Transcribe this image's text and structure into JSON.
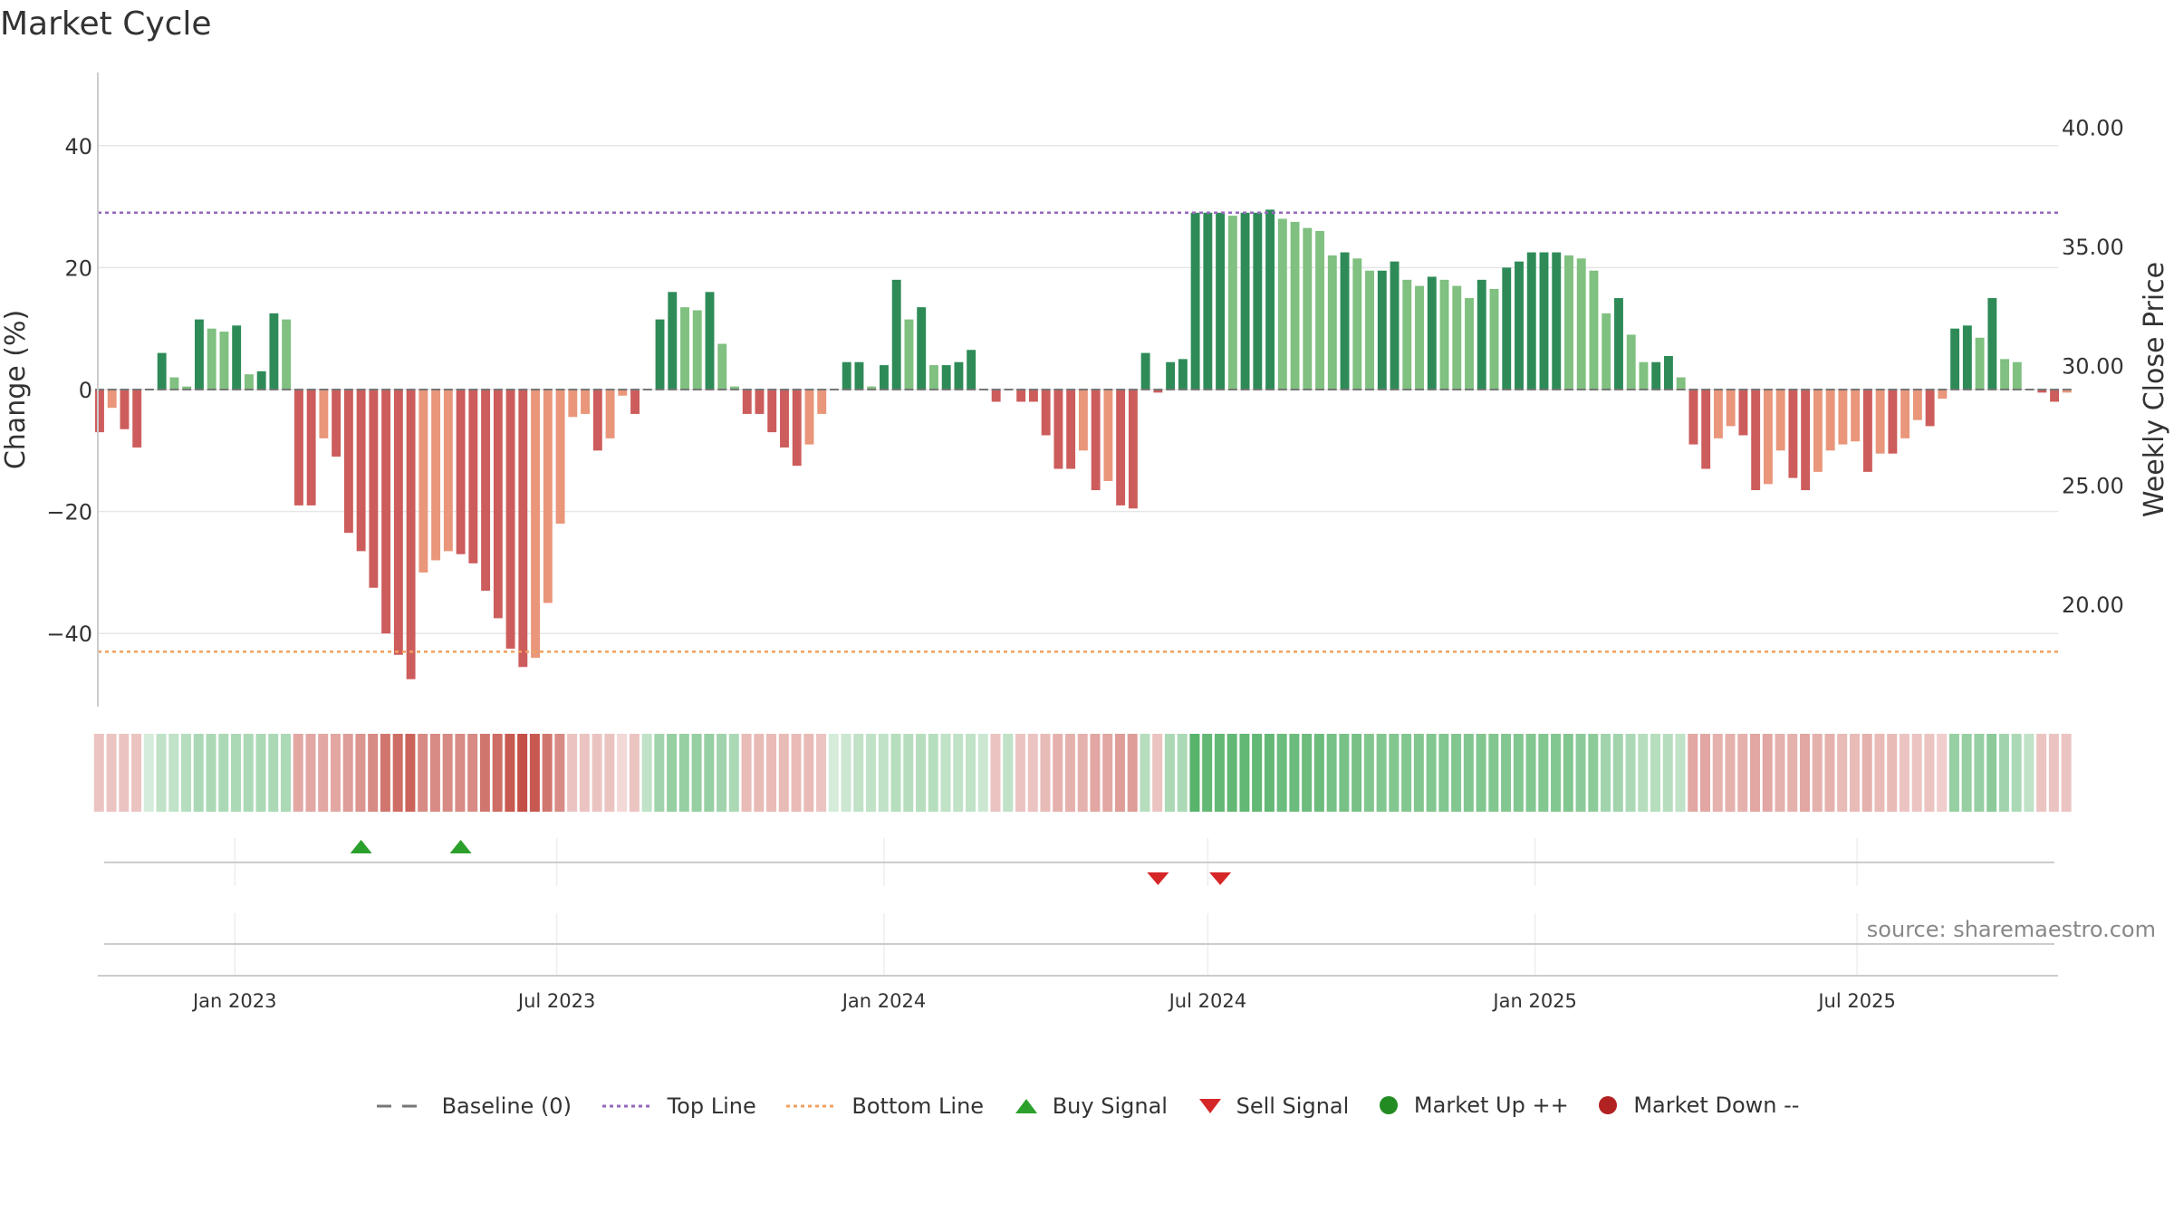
{
  "title": "Market Cycle",
  "source": "source: sharemaestro.com",
  "legend": [
    {
      "label": "Baseline (0)",
      "icon": "dash-line",
      "color": "#777777"
    },
    {
      "label": "Top Line",
      "icon": "dotted-line",
      "color": "#9467bd"
    },
    {
      "label": "Bottom Line",
      "icon": "dotted-line",
      "color": "#f0a060"
    },
    {
      "label": "Buy Signal",
      "icon": "triangle-up",
      "color": "#2ca02c"
    },
    {
      "label": "Sell Signal",
      "icon": "triangle-down",
      "color": "#d62728"
    },
    {
      "label": "Market Up ++",
      "icon": "circle",
      "color": "#228b22"
    },
    {
      "label": "Market Down --",
      "icon": "circle",
      "color": "#b22222"
    }
  ],
  "chart_data": {
    "type": "bar",
    "title": "Market Cycle",
    "ylabel": "Change (%)",
    "y2label": "Weekly Close Price",
    "ylim": [
      -52,
      52
    ],
    "yticks": [
      -40,
      -20,
      0,
      20,
      40
    ],
    "ytick_labels": [
      "−40",
      "−20",
      "0",
      "20",
      "40"
    ],
    "y2lim": [
      15.7,
      42.3
    ],
    "y2ticks": [
      20,
      25,
      30,
      35,
      40
    ],
    "y2tick_labels": [
      "20.00",
      "25.00",
      "30.00",
      "35.00",
      "40.00"
    ],
    "top_line": 29,
    "bottom_line": -43,
    "x_start": "2022-10-16",
    "x_end": "2025-10-22",
    "xtick_dates": [
      "2023-01-01",
      "2023-07-01",
      "2024-01-01",
      "2024-07-01",
      "2025-01-01",
      "2025-07-01"
    ],
    "xtick_labels": [
      "Jan 2023",
      "Jul 2023",
      "Jan 2024",
      "Jul 2024",
      "Jan 2025",
      "Jul 2025"
    ],
    "bars_start": "2022-10-17",
    "bars_interval_days": 7,
    "values": [
      -7,
      -3,
      -6.5,
      -9.5,
      0,
      6,
      2,
      0.5,
      11.5,
      10,
      9.5,
      10.5,
      2.5,
      3,
      12.5,
      11.5,
      -19,
      -19,
      -8,
      -11,
      -23.5,
      -26.5,
      -32.5,
      -40,
      -43.5,
      -47.5,
      -30,
      -28,
      -26.5,
      -27,
      -28.5,
      -33,
      -37.5,
      -42.5,
      -45.5,
      -44,
      -35,
      -22,
      -4.5,
      -4,
      -10,
      -8,
      -1,
      -4,
      0,
      11.5,
      16,
      13.5,
      13,
      16,
      7.5,
      0.5,
      -4,
      -4,
      -7,
      -9.5,
      -12.5,
      -9,
      -4,
      0,
      4.5,
      4.5,
      0.5,
      4,
      18,
      11.5,
      13.5,
      4,
      4,
      4.5,
      6.5,
      0,
      -2,
      0,
      -2,
      -2,
      -7.5,
      -13,
      -13,
      -10,
      -16.5,
      -15,
      -19,
      -19.5,
      6,
      -0.5,
      4.5,
      5,
      29,
      29,
      29,
      28.5,
      29,
      29,
      29.5,
      28,
      27.5,
      26.5,
      26,
      22,
      22.5,
      21.5,
      19.5,
      19.5,
      21,
      18,
      17,
      18.5,
      18,
      17,
      15,
      18,
      16.5,
      20,
      21,
      22.5,
      22.5,
      22.5,
      22,
      21.5,
      19.5,
      12.5,
      15,
      9,
      4.5,
      4.5,
      5.5,
      2,
      -9,
      -13,
      -8,
      -6,
      -7.5,
      -16.5,
      -15.5,
      -10,
      -14.5,
      -16.5,
      -13.5,
      -10,
      -9,
      -8.5,
      -13.5,
      -10.5,
      -10.5,
      -8,
      -5,
      -6,
      -1.5,
      10,
      10.5,
      8.5,
      15,
      5,
      4.5,
      0,
      -0.5,
      -2,
      -0.5
    ],
    "heat_strength": [
      0.3,
      0.3,
      0.3,
      0.3,
      0.2,
      0.3,
      0.3,
      0.35,
      0.4,
      0.4,
      0.4,
      0.4,
      0.4,
      0.4,
      0.4,
      0.4,
      0.45,
      0.45,
      0.45,
      0.45,
      0.5,
      0.55,
      0.6,
      0.7,
      0.75,
      0.8,
      0.6,
      0.6,
      0.6,
      0.6,
      0.6,
      0.7,
      0.75,
      0.85,
      0.9,
      0.85,
      0.7,
      0.6,
      0.3,
      0.3,
      0.3,
      0.3,
      0.2,
      0.3,
      0.3,
      0.45,
      0.5,
      0.5,
      0.5,
      0.5,
      0.45,
      0.4,
      0.35,
      0.35,
      0.35,
      0.35,
      0.35,
      0.35,
      0.3,
      0.2,
      0.25,
      0.3,
      0.3,
      0.3,
      0.35,
      0.35,
      0.35,
      0.35,
      0.3,
      0.3,
      0.3,
      0.25,
      0.3,
      0.3,
      0.3,
      0.3,
      0.35,
      0.4,
      0.4,
      0.4,
      0.45,
      0.45,
      0.5,
      0.5,
      0.35,
      0.3,
      0.4,
      0.4,
      0.8,
      0.75,
      0.75,
      0.75,
      0.75,
      0.75,
      0.75,
      0.7,
      0.7,
      0.7,
      0.7,
      0.65,
      0.65,
      0.65,
      0.6,
      0.6,
      0.6,
      0.6,
      0.6,
      0.6,
      0.6,
      0.6,
      0.6,
      0.6,
      0.6,
      0.6,
      0.6,
      0.6,
      0.6,
      0.6,
      0.6,
      0.55,
      0.55,
      0.45,
      0.45,
      0.4,
      0.35,
      0.35,
      0.35,
      0.3,
      0.45,
      0.45,
      0.4,
      0.4,
      0.4,
      0.45,
      0.45,
      0.4,
      0.4,
      0.45,
      0.4,
      0.4,
      0.35,
      0.35,
      0.4,
      0.35,
      0.35,
      0.3,
      0.3,
      0.3,
      0.25,
      0.5,
      0.5,
      0.5,
      0.55,
      0.45,
      0.4,
      0.3,
      0.3,
      0.3,
      0.3
    ],
    "buy_signals": [
      "2023-03-13",
      "2023-05-08"
    ],
    "sell_signals": [
      "2024-06-03",
      "2024-07-08"
    ],
    "grid": true,
    "legend_position": "bottom"
  }
}
